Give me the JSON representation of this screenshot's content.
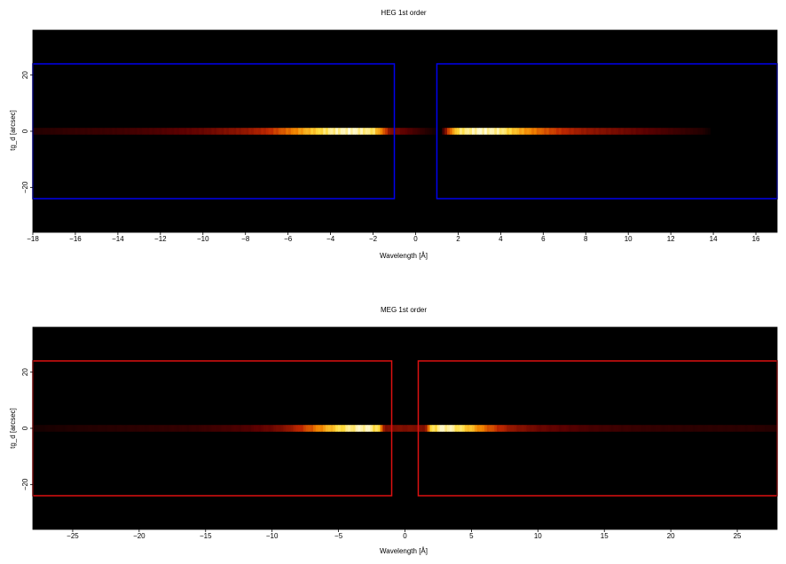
{
  "chart_data": [
    {
      "type": "heatmap",
      "title": "HEG 1st order",
      "xlabel": "Wavelength [Å]",
      "ylabel": "tg_d [arcsec]",
      "xlim": [
        -18,
        17
      ],
      "ylim": [
        -36,
        36
      ],
      "xticks": [
        -18,
        -16,
        -14,
        -12,
        -10,
        -8,
        -6,
        -4,
        -2,
        0,
        2,
        4,
        6,
        8,
        10,
        12,
        14,
        16
      ],
      "yticks": [
        -20,
        0,
        20
      ],
      "background": "#000000",
      "region_color": "#0000ee",
      "regions": [
        {
          "x": [
            -18,
            -1
          ],
          "y": [
            -24,
            24
          ]
        },
        {
          "x": [
            1,
            17
          ],
          "y": [
            -24,
            24
          ]
        }
      ],
      "trace": {
        "y": [
          -1.2,
          1.2
        ]
      },
      "intensity_profile": [
        {
          "x": -18,
          "i": 0.08
        },
        {
          "x": -16,
          "i": 0.12
        },
        {
          "x": -14,
          "i": 0.14
        },
        {
          "x": -12,
          "i": 0.18
        },
        {
          "x": -10,
          "i": 0.24
        },
        {
          "x": -8,
          "i": 0.35
        },
        {
          "x": -7,
          "i": 0.45
        },
        {
          "x": -6,
          "i": 0.62
        },
        {
          "x": -5,
          "i": 0.8
        },
        {
          "x": -4,
          "i": 0.95
        },
        {
          "x": -3,
          "i": 1.0
        },
        {
          "x": -2,
          "i": 0.92
        },
        {
          "x": -1.5,
          "i": 0.6
        },
        {
          "x": -1.2,
          "i": 0.3
        },
        {
          "x": 1.2,
          "i": 0.0
        },
        {
          "x": 1.6,
          "i": 0.6
        },
        {
          "x": 2,
          "i": 0.9
        },
        {
          "x": 3,
          "i": 1.0
        },
        {
          "x": 4,
          "i": 0.95
        },
        {
          "x": 5,
          "i": 0.75
        },
        {
          "x": 6,
          "i": 0.58
        },
        {
          "x": 7,
          "i": 0.45
        },
        {
          "x": 8,
          "i": 0.35
        },
        {
          "x": 10,
          "i": 0.25
        },
        {
          "x": 12,
          "i": 0.15
        },
        {
          "x": 13.5,
          "i": 0.08
        },
        {
          "x": 14,
          "i": 0.0
        }
      ]
    },
    {
      "type": "heatmap",
      "title": "MEG 1st order",
      "xlabel": "Wavelength [Å]",
      "ylabel": "tg_d [arcsec]",
      "xlim": [
        -28,
        28
      ],
      "ylim": [
        -36,
        36
      ],
      "xticks": [
        -25,
        -20,
        -15,
        -10,
        -5,
        0,
        5,
        10,
        15,
        20,
        25
      ],
      "yticks": [
        -20,
        0,
        20
      ],
      "background": "#000000",
      "region_color": "#dd1111",
      "regions": [
        {
          "x": [
            -28,
            -1
          ],
          "y": [
            -24,
            24
          ]
        },
        {
          "x": [
            1,
            28
          ],
          "y": [
            -24,
            24
          ]
        }
      ],
      "trace": {
        "y": [
          -1.2,
          1.2
        ]
      },
      "intensity_profile": [
        {
          "x": -28,
          "i": 0.05
        },
        {
          "x": -24,
          "i": 0.08
        },
        {
          "x": -20,
          "i": 0.1
        },
        {
          "x": -16,
          "i": 0.12
        },
        {
          "x": -12,
          "i": 0.18
        },
        {
          "x": -10,
          "i": 0.25
        },
        {
          "x": -9,
          "i": 0.32
        },
        {
          "x": -8,
          "i": 0.45
        },
        {
          "x": -7,
          "i": 0.6
        },
        {
          "x": -6,
          "i": 0.75
        },
        {
          "x": -5,
          "i": 0.88
        },
        {
          "x": -4,
          "i": 0.95
        },
        {
          "x": -3,
          "i": 1.0
        },
        {
          "x": -2,
          "i": 0.9
        },
        {
          "x": -1.5,
          "i": 0.3
        },
        {
          "x": 1.5,
          "i": 0.3
        },
        {
          "x": 2,
          "i": 0.9
        },
        {
          "x": 3,
          "i": 1.0
        },
        {
          "x": 4,
          "i": 0.92
        },
        {
          "x": 5,
          "i": 0.8
        },
        {
          "x": 6,
          "i": 0.62
        },
        {
          "x": 7,
          "i": 0.48
        },
        {
          "x": 8,
          "i": 0.35
        },
        {
          "x": 10,
          "i": 0.25
        },
        {
          "x": 14,
          "i": 0.16
        },
        {
          "x": 18,
          "i": 0.12
        },
        {
          "x": 22,
          "i": 0.1
        },
        {
          "x": 26,
          "i": 0.1
        },
        {
          "x": 28,
          "i": 0.08
        }
      ]
    }
  ]
}
